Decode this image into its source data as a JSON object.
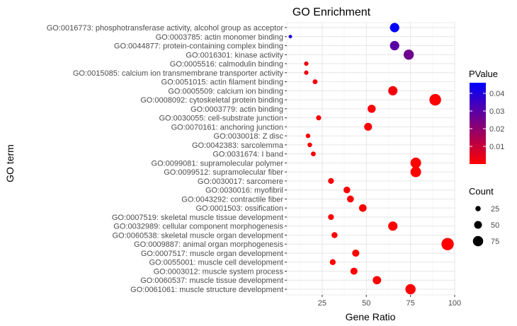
{
  "chart_data": {
    "type": "scatter",
    "title": "GO Enrichment",
    "xlabel": "Gene Ratio",
    "ylabel": "GO term",
    "xlim": [
      5,
      100
    ],
    "xticks": [
      25,
      50,
      75,
      100
    ],
    "grid": true,
    "legend_placement": "right",
    "color_legend": {
      "title": "PValue",
      "ticks": [
        "0.04",
        "0.03",
        "0.02",
        "0.01"
      ],
      "tick_values": [
        0.04,
        0.03,
        0.02,
        0.01
      ],
      "range": [
        0.0,
        0.046
      ],
      "low_color": "#ff0000",
      "high_color": "#0000ff"
    },
    "size_legend": {
      "title": "Count",
      "values": [
        25,
        50,
        75
      ],
      "labels": [
        "25",
        "50",
        "75"
      ]
    },
    "categories": [
      "GO:0016773: phosphotransferase activity, alcohol group as acceptor",
      "GO:0003785: actin monomer binding",
      "GO:0044877: protein-containing complex binding",
      "GO:0016301: kinase activity",
      "GO:0005516: calmodulin binding",
      "GO:0015085: calcium ion transmembrane transporter activity",
      "GO:0051015: actin filament binding",
      "GO:0005509: calcium ion binding",
      "GO:0008092: cytoskeletal protein binding",
      "GO:0003779: actin binding",
      "GO:0030055: cell-substrate junction",
      "GO:0070161: anchoring junction",
      "GO:0030018: Z disc",
      "GO:0042383: sarcolemma",
      "GO:0031674: I band",
      "GO:0099081: supramolecular polymer",
      "GO:0099512: supramolecular fiber",
      "GO:0030017: sarcomere",
      "GO:0030016: myofibril",
      "GO:0043292: contractile fiber",
      "GO:0001503: ossification",
      "GO:0007519: skeletal muscle tissue development",
      "GO:0032989: cellular component morphogenesis",
      "GO:0060538: skeletal muscle organ development",
      "GO:0009887: animal organ morphogenesis",
      "GO:0007517: muscle organ development",
      "GO:0055001: muscle cell development",
      "GO:0003012: muscle system process",
      "GO:0060537: muscle tissue development",
      "GO:0061061: muscle structure development"
    ],
    "points": [
      {
        "term": "GO:0016773: phosphotransferase activity, alcohol group as acceptor",
        "x": 66,
        "count": 66,
        "pvalue": 0.046
      },
      {
        "term": "GO:0003785: actin monomer binding",
        "x": 7,
        "count": 7,
        "pvalue": 0.04
      },
      {
        "term": "GO:0044877: protein-containing complex binding",
        "x": 66,
        "count": 66,
        "pvalue": 0.03
      },
      {
        "term": "GO:0016301: kinase activity",
        "x": 74,
        "count": 74,
        "pvalue": 0.026
      },
      {
        "term": "GO:0005516: calmodulin binding",
        "x": 16,
        "count": 16,
        "pvalue": 0.003
      },
      {
        "term": "GO:0015085: calcium ion transmembrane transporter activity",
        "x": 16,
        "count": 16,
        "pvalue": 0.003
      },
      {
        "term": "GO:0051015: actin filament binding",
        "x": 21,
        "count": 21,
        "pvalue": 0.002
      },
      {
        "term": "GO:0005509: calcium ion binding",
        "x": 65,
        "count": 65,
        "pvalue": 0.002
      },
      {
        "term": "GO:0008092: cytoskeletal protein binding",
        "x": 89,
        "count": 89,
        "pvalue": 0.0005
      },
      {
        "term": "GO:0003779: actin binding",
        "x": 53,
        "count": 53,
        "pvalue": 0.0008
      },
      {
        "term": "GO:0030055: cell-substrate junction",
        "x": 23,
        "count": 23,
        "pvalue": 0.001
      },
      {
        "term": "GO:0070161: anchoring junction",
        "x": 51,
        "count": 51,
        "pvalue": 0.001
      },
      {
        "term": "GO:0030018: Z disc",
        "x": 17,
        "count": 17,
        "pvalue": 0.001
      },
      {
        "term": "GO:0042383: sarcolemma",
        "x": 18,
        "count": 18,
        "pvalue": 0.001
      },
      {
        "term": "GO:0031674: I band",
        "x": 20,
        "count": 20,
        "pvalue": 0.001
      },
      {
        "term": "GO:0099081: supramolecular polymer",
        "x": 78,
        "count": 78,
        "pvalue": 0.0003
      },
      {
        "term": "GO:0099512: supramolecular fiber",
        "x": 78,
        "count": 78,
        "pvalue": 0.0003
      },
      {
        "term": "GO:0030017: sarcomere",
        "x": 30,
        "count": 30,
        "pvalue": 0.0005
      },
      {
        "term": "GO:0030016: myofibril",
        "x": 39,
        "count": 39,
        "pvalue": 0.0004
      },
      {
        "term": "GO:0043292: contractile fiber",
        "x": 41,
        "count": 41,
        "pvalue": 0.0004
      },
      {
        "term": "GO:0001503: ossification",
        "x": 48,
        "count": 48,
        "pvalue": 0.0005
      },
      {
        "term": "GO:0007519: skeletal muscle tissue development",
        "x": 30,
        "count": 30,
        "pvalue": 0.0004
      },
      {
        "term": "GO:0032989: cellular component morphogenesis",
        "x": 65,
        "count": 65,
        "pvalue": 0.0004
      },
      {
        "term": "GO:0060538: skeletal muscle organ development",
        "x": 32,
        "count": 32,
        "pvalue": 0.0004
      },
      {
        "term": "GO:0009887: animal organ morphogenesis",
        "x": 96,
        "count": 96,
        "pvalue": 0.0002
      },
      {
        "term": "GO:0007517: muscle organ development",
        "x": 44,
        "count": 44,
        "pvalue": 0.0002
      },
      {
        "term": "GO:0055001: muscle cell development",
        "x": 31,
        "count": 31,
        "pvalue": 0.0002
      },
      {
        "term": "GO:0003012: muscle system process",
        "x": 43,
        "count": 43,
        "pvalue": 0.0002
      },
      {
        "term": "GO:0060537: muscle tissue development",
        "x": 56,
        "count": 56,
        "pvalue": 0.0001
      },
      {
        "term": "GO:0061061: muscle structure development",
        "x": 75,
        "count": 75,
        "pvalue": 5e-05
      }
    ]
  }
}
